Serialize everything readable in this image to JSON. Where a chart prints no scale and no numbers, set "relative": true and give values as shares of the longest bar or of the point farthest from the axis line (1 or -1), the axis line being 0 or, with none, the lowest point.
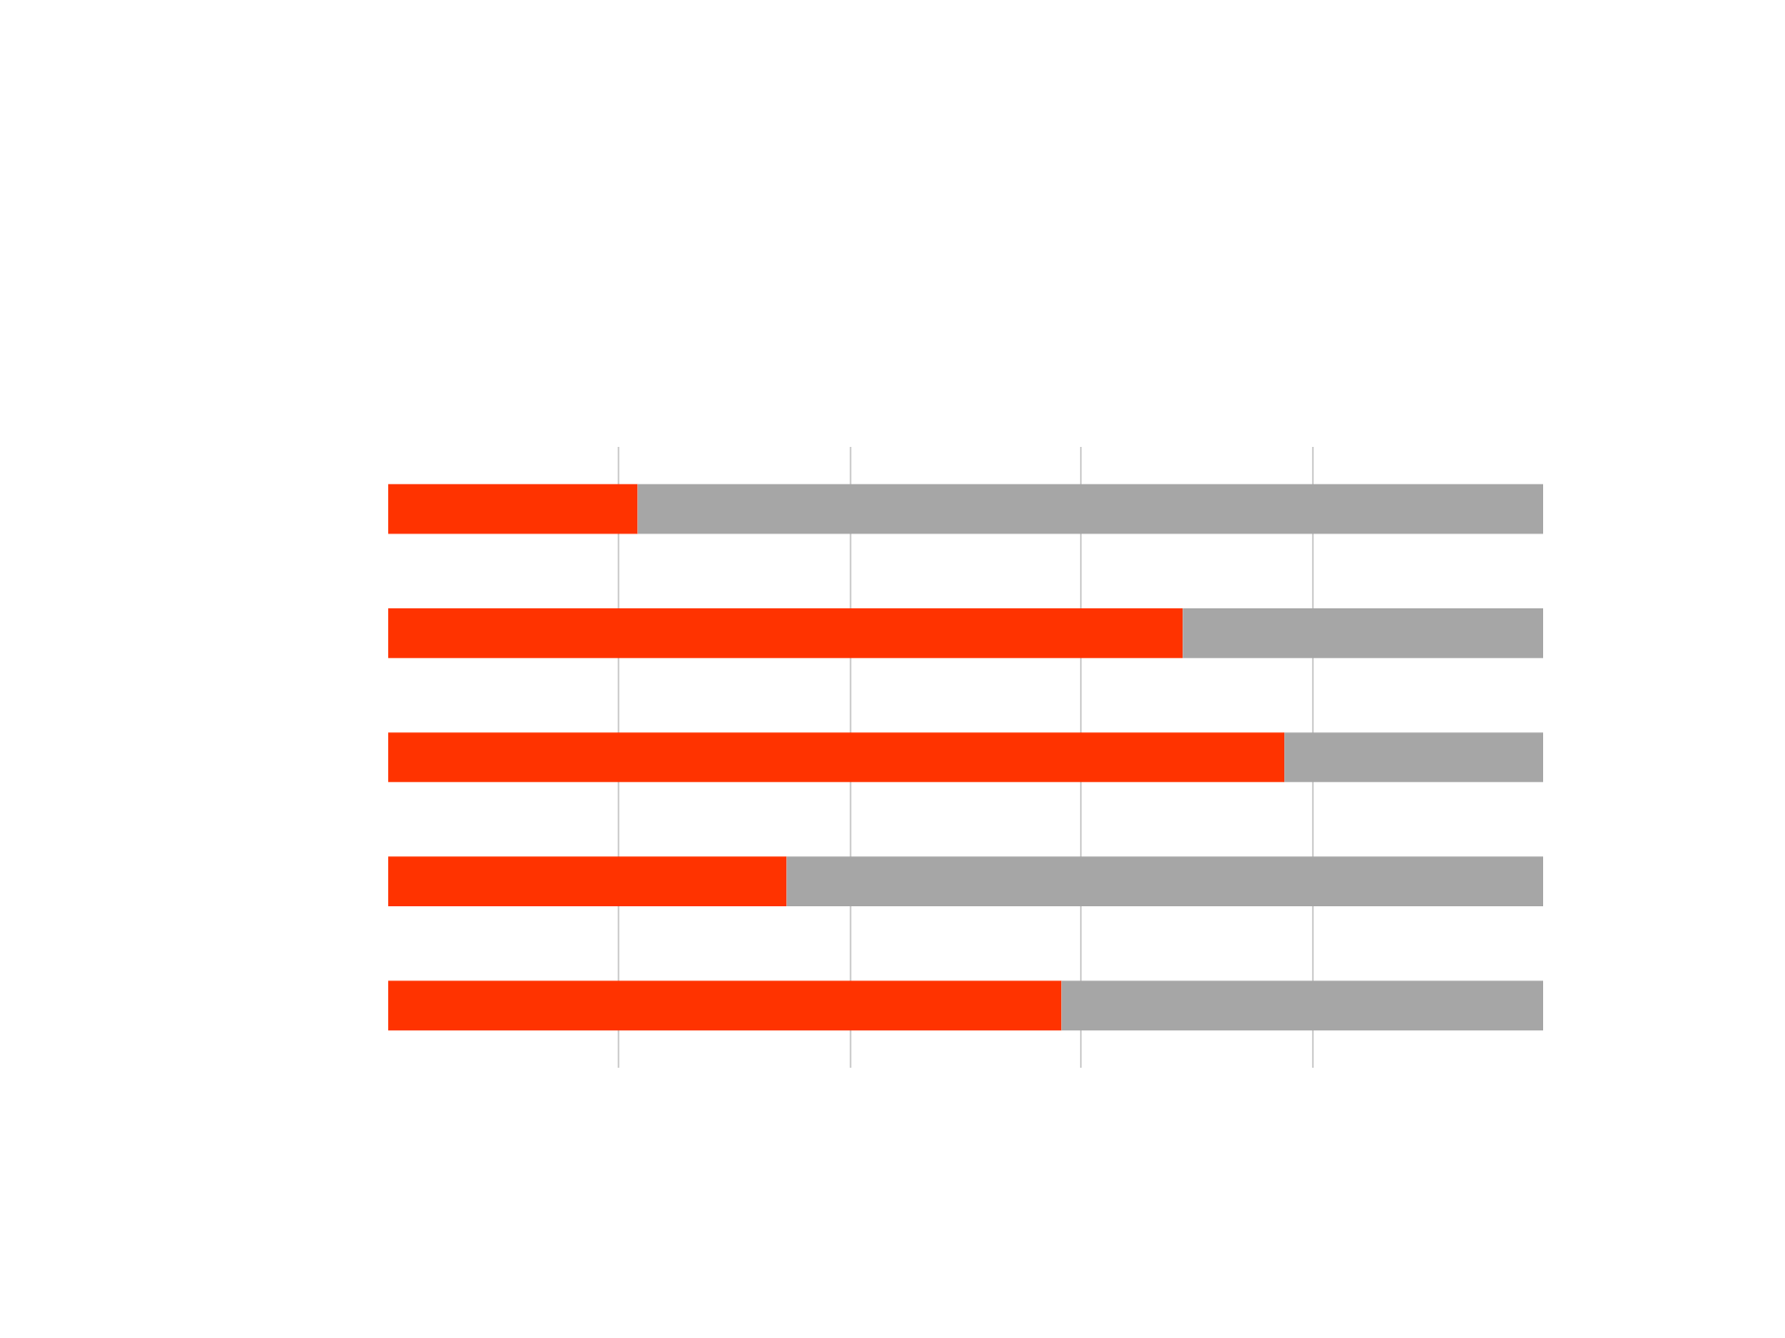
{
  "chart_data": {
    "type": "bar",
    "orientation": "horizontal",
    "stacked": true,
    "relative": true,
    "grid": "x",
    "categories": [
      null,
      null,
      null,
      null,
      null
    ],
    "series": [
      {
        "color": "#ff3300",
        "values": [
          0.216,
          0.688,
          0.776,
          0.345,
          0.583
        ]
      },
      {
        "color": "#a6a6a6",
        "values": [
          0.784,
          0.312,
          0.224,
          0.655,
          0.417
        ]
      }
    ]
  }
}
